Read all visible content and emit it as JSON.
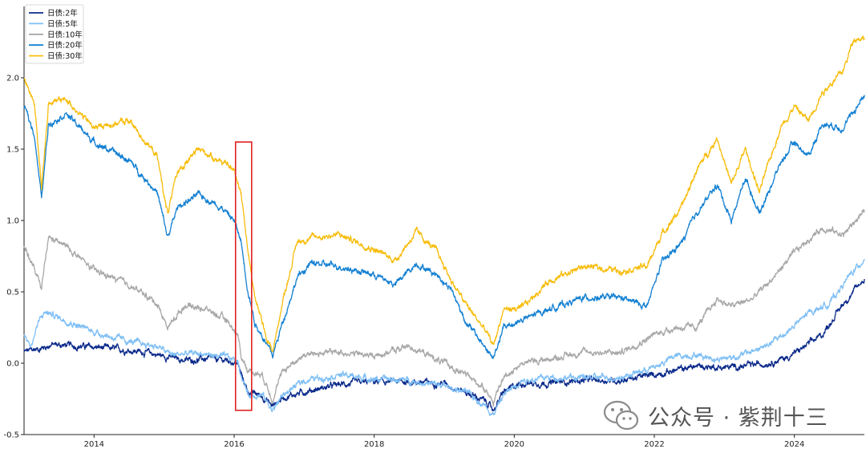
{
  "chart_data": {
    "type": "line",
    "title": "",
    "xlabel": "",
    "ylabel": "",
    "xlim": [
      2013.0,
      2025.0
    ],
    "ylim": [
      -0.5,
      2.5
    ],
    "x_ticks": [
      2014,
      2016,
      2018,
      2020,
      2022,
      2024
    ],
    "x_tick_labels": [
      "2014",
      "2016",
      "2018",
      "2020",
      "2022",
      "2024"
    ],
    "y_ticks": [
      -0.5,
      0.0,
      0.5,
      1.0,
      1.5,
      2.0
    ],
    "y_tick_labels": [
      "-0.5",
      "0.0",
      "0.5",
      "1.0",
      "1.5",
      "2.0"
    ],
    "legend_position": "top-left",
    "grid": false,
    "series": [
      {
        "name": "日债:2年",
        "color": "#0b2a8a",
        "points": [
          [
            2013.0,
            0.08
          ],
          [
            2013.2,
            0.1
          ],
          [
            2013.4,
            0.13
          ],
          [
            2013.8,
            0.12
          ],
          [
            2014.3,
            0.1
          ],
          [
            2014.7,
            0.08
          ],
          [
            2015.0,
            0.05
          ],
          [
            2015.3,
            0.02
          ],
          [
            2015.6,
            0.03
          ],
          [
            2015.9,
            0.02
          ],
          [
            2016.05,
            0.0
          ],
          [
            2016.1,
            -0.08
          ],
          [
            2016.2,
            -0.2
          ],
          [
            2016.4,
            -0.23
          ],
          [
            2016.55,
            -0.3
          ],
          [
            2016.7,
            -0.24
          ],
          [
            2017.0,
            -0.2
          ],
          [
            2017.5,
            -0.15
          ],
          [
            2018.0,
            -0.13
          ],
          [
            2018.5,
            -0.13
          ],
          [
            2019.0,
            -0.14
          ],
          [
            2019.3,
            -0.2
          ],
          [
            2019.6,
            -0.27
          ],
          [
            2019.7,
            -0.33
          ],
          [
            2019.85,
            -0.2
          ],
          [
            2020.1,
            -0.14
          ],
          [
            2020.5,
            -0.14
          ],
          [
            2021.0,
            -0.12
          ],
          [
            2021.5,
            -0.12
          ],
          [
            2022.0,
            -0.08
          ],
          [
            2022.3,
            -0.05
          ],
          [
            2022.6,
            -0.02
          ],
          [
            2023.0,
            -0.03
          ],
          [
            2023.3,
            -0.02
          ],
          [
            2023.6,
            0.0
          ],
          [
            2023.9,
            0.04
          ],
          [
            2024.1,
            0.1
          ],
          [
            2024.4,
            0.2
          ],
          [
            2024.7,
            0.42
          ],
          [
            2025.0,
            0.59
          ]
        ]
      },
      {
        "name": "日债:5年",
        "color": "#7fbff5",
        "points": [
          [
            2013.0,
            0.2
          ],
          [
            2013.1,
            0.12
          ],
          [
            2013.2,
            0.28
          ],
          [
            2013.3,
            0.36
          ],
          [
            2013.5,
            0.32
          ],
          [
            2014.0,
            0.22
          ],
          [
            2014.5,
            0.15
          ],
          [
            2014.9,
            0.12
          ],
          [
            2015.1,
            0.06
          ],
          [
            2015.5,
            0.07
          ],
          [
            2015.9,
            0.04
          ],
          [
            2016.05,
            0.02
          ],
          [
            2016.1,
            -0.08
          ],
          [
            2016.2,
            -0.22
          ],
          [
            2016.4,
            -0.22
          ],
          [
            2016.55,
            -0.33
          ],
          [
            2016.7,
            -0.22
          ],
          [
            2017.0,
            -0.12
          ],
          [
            2017.5,
            -0.08
          ],
          [
            2018.0,
            -0.11
          ],
          [
            2018.5,
            -0.12
          ],
          [
            2019.0,
            -0.16
          ],
          [
            2019.3,
            -0.2
          ],
          [
            2019.6,
            -0.3
          ],
          [
            2019.7,
            -0.36
          ],
          [
            2019.85,
            -0.22
          ],
          [
            2020.1,
            -0.12
          ],
          [
            2020.5,
            -0.1
          ],
          [
            2021.0,
            -0.1
          ],
          [
            2021.5,
            -0.1
          ],
          [
            2022.0,
            -0.03
          ],
          [
            2022.3,
            0.05
          ],
          [
            2022.6,
            0.06
          ],
          [
            2022.9,
            0.03
          ],
          [
            2023.2,
            0.05
          ],
          [
            2023.6,
            0.12
          ],
          [
            2023.9,
            0.22
          ],
          [
            2024.2,
            0.35
          ],
          [
            2024.5,
            0.42
          ],
          [
            2024.8,
            0.62
          ],
          [
            2025.0,
            0.73
          ]
        ]
      },
      {
        "name": "日债:10年",
        "color": "#a8a8a8",
        "points": [
          [
            2013.0,
            0.83
          ],
          [
            2013.15,
            0.65
          ],
          [
            2013.25,
            0.52
          ],
          [
            2013.35,
            0.88
          ],
          [
            2013.6,
            0.82
          ],
          [
            2014.0,
            0.65
          ],
          [
            2014.5,
            0.55
          ],
          [
            2014.9,
            0.42
          ],
          [
            2015.05,
            0.25
          ],
          [
            2015.3,
            0.41
          ],
          [
            2015.6,
            0.38
          ],
          [
            2015.9,
            0.3
          ],
          [
            2016.05,
            0.2
          ],
          [
            2016.1,
            0.05
          ],
          [
            2016.2,
            -0.05
          ],
          [
            2016.4,
            -0.08
          ],
          [
            2016.55,
            -0.25
          ],
          [
            2016.7,
            -0.05
          ],
          [
            2017.0,
            0.06
          ],
          [
            2017.5,
            0.08
          ],
          [
            2018.0,
            0.05
          ],
          [
            2018.5,
            0.12
          ],
          [
            2018.8,
            0.05
          ],
          [
            2019.0,
            0.0
          ],
          [
            2019.3,
            -0.08
          ],
          [
            2019.6,
            -0.18
          ],
          [
            2019.7,
            -0.28
          ],
          [
            2019.85,
            -0.1
          ],
          [
            2020.1,
            0.0
          ],
          [
            2020.5,
            0.03
          ],
          [
            2021.0,
            0.08
          ],
          [
            2021.5,
            0.07
          ],
          [
            2022.0,
            0.2
          ],
          [
            2022.3,
            0.25
          ],
          [
            2022.6,
            0.25
          ],
          [
            2022.9,
            0.45
          ],
          [
            2023.1,
            0.4
          ],
          [
            2023.4,
            0.45
          ],
          [
            2023.7,
            0.6
          ],
          [
            2023.9,
            0.72
          ],
          [
            2024.1,
            0.82
          ],
          [
            2024.4,
            0.95
          ],
          [
            2024.7,
            0.9
          ],
          [
            2025.0,
            1.07
          ]
        ]
      },
      {
        "name": "日债:20年",
        "color": "#1380d2",
        "points": [
          [
            2013.0,
            1.8
          ],
          [
            2013.15,
            1.6
          ],
          [
            2013.25,
            1.15
          ],
          [
            2013.35,
            1.68
          ],
          [
            2013.6,
            1.75
          ],
          [
            2014.0,
            1.55
          ],
          [
            2014.5,
            1.42
          ],
          [
            2014.9,
            1.2
          ],
          [
            2015.05,
            0.88
          ],
          [
            2015.2,
            1.1
          ],
          [
            2015.5,
            1.18
          ],
          [
            2015.8,
            1.1
          ],
          [
            2016.0,
            1.0
          ],
          [
            2016.1,
            0.85
          ],
          [
            2016.2,
            0.5
          ],
          [
            2016.3,
            0.28
          ],
          [
            2016.45,
            0.15
          ],
          [
            2016.55,
            0.05
          ],
          [
            2016.7,
            0.3
          ],
          [
            2016.9,
            0.6
          ],
          [
            2017.1,
            0.7
          ],
          [
            2017.5,
            0.68
          ],
          [
            2018.0,
            0.62
          ],
          [
            2018.3,
            0.55
          ],
          [
            2018.6,
            0.7
          ],
          [
            2018.9,
            0.62
          ],
          [
            2019.1,
            0.52
          ],
          [
            2019.3,
            0.3
          ],
          [
            2019.6,
            0.1
          ],
          [
            2019.7,
            0.03
          ],
          [
            2019.85,
            0.25
          ],
          [
            2020.1,
            0.3
          ],
          [
            2020.5,
            0.38
          ],
          [
            2021.0,
            0.46
          ],
          [
            2021.5,
            0.46
          ],
          [
            2021.9,
            0.4
          ],
          [
            2022.1,
            0.7
          ],
          [
            2022.4,
            0.85
          ],
          [
            2022.6,
            1.05
          ],
          [
            2022.9,
            1.25
          ],
          [
            2023.1,
            1.0
          ],
          [
            2023.3,
            1.3
          ],
          [
            2023.5,
            1.05
          ],
          [
            2023.8,
            1.4
          ],
          [
            2024.0,
            1.55
          ],
          [
            2024.2,
            1.45
          ],
          [
            2024.4,
            1.68
          ],
          [
            2024.7,
            1.65
          ],
          [
            2025.0,
            1.88
          ]
        ]
      },
      {
        "name": "日债:30年",
        "color": "#f7bd0d",
        "points": [
          [
            2013.0,
            2.0
          ],
          [
            2013.15,
            1.82
          ],
          [
            2013.25,
            1.22
          ],
          [
            2013.35,
            1.82
          ],
          [
            2013.6,
            1.85
          ],
          [
            2014.0,
            1.65
          ],
          [
            2014.5,
            1.7
          ],
          [
            2014.9,
            1.45
          ],
          [
            2015.05,
            1.05
          ],
          [
            2015.2,
            1.35
          ],
          [
            2015.5,
            1.5
          ],
          [
            2015.8,
            1.42
          ],
          [
            2016.0,
            1.35
          ],
          [
            2016.1,
            1.2
          ],
          [
            2016.2,
            0.78
          ],
          [
            2016.3,
            0.45
          ],
          [
            2016.45,
            0.2
          ],
          [
            2016.55,
            0.08
          ],
          [
            2016.7,
            0.45
          ],
          [
            2016.9,
            0.85
          ],
          [
            2017.1,
            0.88
          ],
          [
            2017.5,
            0.9
          ],
          [
            2018.0,
            0.8
          ],
          [
            2018.3,
            0.72
          ],
          [
            2018.6,
            0.92
          ],
          [
            2018.9,
            0.78
          ],
          [
            2019.1,
            0.58
          ],
          [
            2019.3,
            0.42
          ],
          [
            2019.6,
            0.22
          ],
          [
            2019.7,
            0.12
          ],
          [
            2019.85,
            0.38
          ],
          [
            2020.1,
            0.38
          ],
          [
            2020.5,
            0.58
          ],
          [
            2021.0,
            0.68
          ],
          [
            2021.5,
            0.65
          ],
          [
            2021.9,
            0.68
          ],
          [
            2022.1,
            0.9
          ],
          [
            2022.4,
            1.1
          ],
          [
            2022.6,
            1.35
          ],
          [
            2022.9,
            1.58
          ],
          [
            2023.1,
            1.25
          ],
          [
            2023.3,
            1.5
          ],
          [
            2023.5,
            1.2
          ],
          [
            2023.8,
            1.65
          ],
          [
            2024.0,
            1.8
          ],
          [
            2024.2,
            1.7
          ],
          [
            2024.4,
            1.9
          ],
          [
            2024.7,
            2.05
          ],
          [
            2024.85,
            2.28
          ],
          [
            2025.0,
            2.28
          ]
        ]
      }
    ],
    "annotation": {
      "type": "rectangle",
      "color": "#e02020",
      "x_range": [
        2016.02,
        2016.25
      ],
      "y_range": [
        -0.33,
        1.55
      ]
    }
  },
  "watermark": {
    "text": "公众号 · 紫荆十三",
    "icon": "wechat-icon"
  }
}
